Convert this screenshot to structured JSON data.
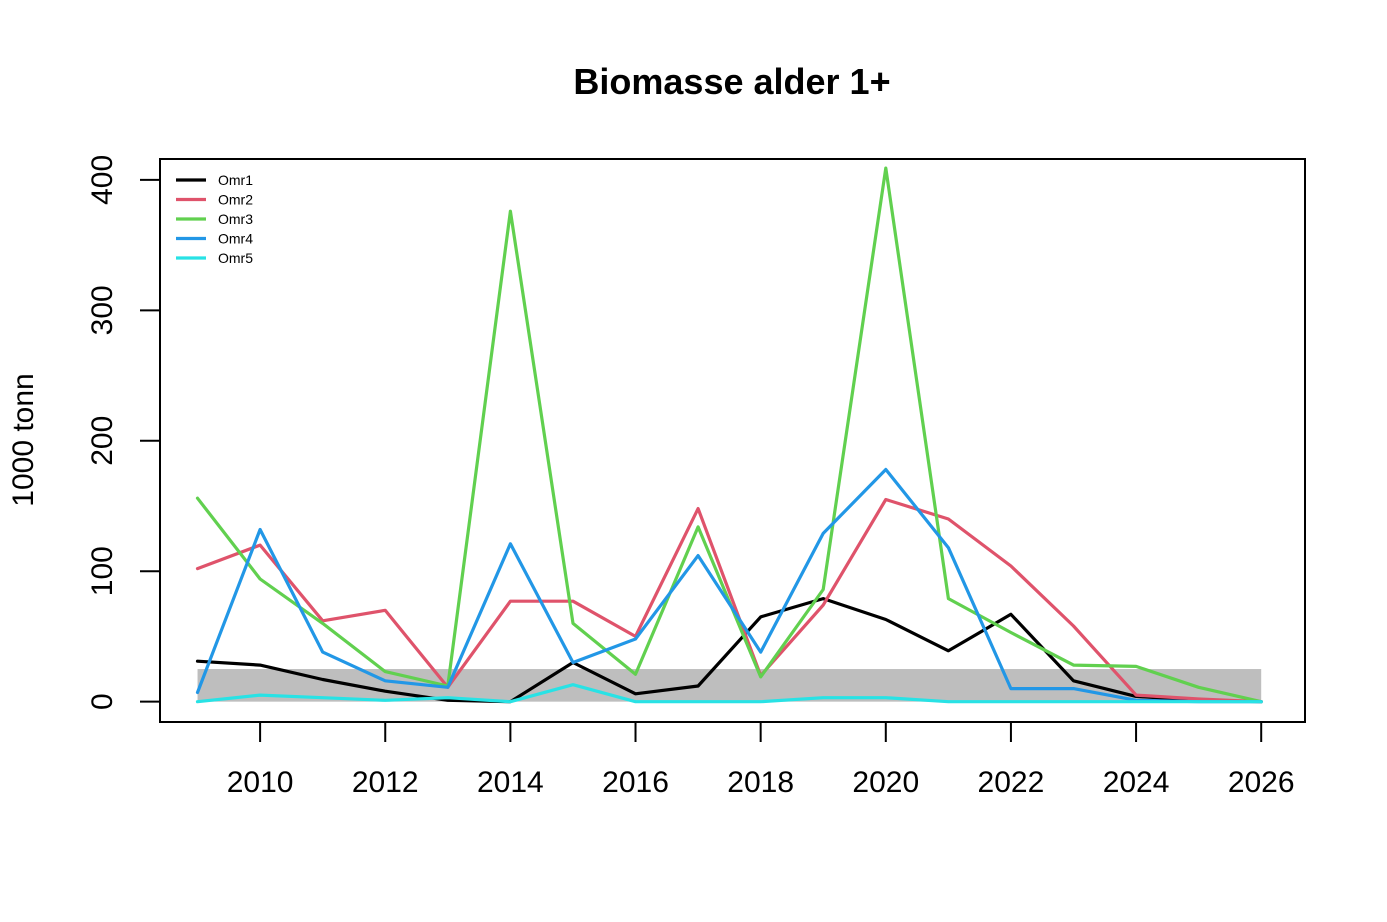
{
  "chart_data": {
    "type": "line",
    "title": "Biomasse alder 1+",
    "xlabel": "",
    "ylabel": "1000 tonn",
    "xlim": [
      2008.4,
      2026.7
    ],
    "ylim": [
      -15.6,
      416
    ],
    "x_ticks": [
      2010,
      2012,
      2014,
      2016,
      2018,
      2020,
      2022,
      2024,
      2026
    ],
    "y_ticks": [
      0,
      100,
      200,
      300,
      400
    ],
    "grid": false,
    "legend_position": "top-left",
    "band": {
      "x": [
        2009,
        2026
      ],
      "y": [
        0,
        25
      ],
      "color": "#bebebe"
    },
    "x": [
      2009,
      2010,
      2011,
      2012,
      2013,
      2014,
      2015,
      2016,
      2017,
      2018,
      2019,
      2020,
      2021,
      2022,
      2023,
      2024,
      2025,
      2026
    ],
    "series": [
      {
        "name": "Omr1",
        "color": "#000000",
        "values": [
          31,
          28,
          17,
          8,
          1,
          0,
          30,
          6,
          12,
          65,
          79,
          63,
          39,
          67,
          16,
          4,
          1,
          0
        ]
      },
      {
        "name": "Omr2",
        "color": "#DF536B",
        "values": [
          102,
          120,
          62,
          70,
          11,
          77,
          77,
          50,
          148,
          20,
          74,
          155,
          140,
          104,
          58,
          5,
          2,
          0
        ]
      },
      {
        "name": "Omr3",
        "color": "#61D04F",
        "values": [
          156,
          94,
          60,
          23,
          12,
          376,
          60,
          21,
          134,
          19,
          86,
          409,
          79,
          53,
          28,
          27,
          11,
          0
        ]
      },
      {
        "name": "Omr4",
        "color": "#2297E6",
        "values": [
          7,
          132,
          38,
          16,
          11,
          121,
          30,
          48,
          112,
          38,
          129,
          178,
          118,
          10,
          10,
          1,
          0,
          0
        ]
      },
      {
        "name": "Omr5",
        "color": "#28E2E5",
        "values": [
          0,
          5,
          3,
          1,
          3,
          0,
          13,
          0,
          0,
          0,
          3,
          3,
          0,
          0,
          0,
          0,
          0,
          0
        ]
      }
    ]
  }
}
